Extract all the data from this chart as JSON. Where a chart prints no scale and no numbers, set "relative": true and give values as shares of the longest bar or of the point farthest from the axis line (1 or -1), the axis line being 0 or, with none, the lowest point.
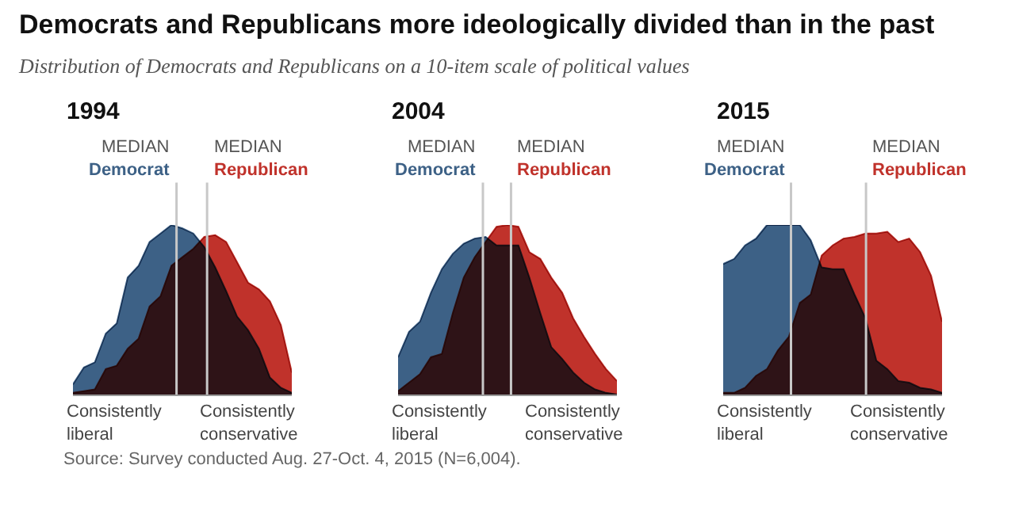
{
  "chart_data": [
    {
      "type": "other",
      "title": "Democrats and Republicans more ideologically divided than in the past",
      "subtitle": "Distribution of Democrats and Republicans on a 10-item scale of political values",
      "annotations": [
        "Source: Survey conducted Aug. 27-Oct. 4, 2015 (N=6,004)."
      ]
    },
    {
      "type": "area",
      "title": "1994",
      "relative": true,
      "categories": [
        null,
        null,
        null,
        null,
        null,
        null,
        null,
        null,
        null,
        null,
        null,
        null,
        null,
        null,
        null,
        null,
        null,
        null,
        null,
        null,
        null
      ],
      "annotations": [
        "MEDIAN",
        "MEDIAN",
        "Consistently\nliberal",
        "Consistently\nconservative"
      ],
      "series": [
        {
          "name": "Democrat",
          "color": "#3d6186",
          "values": [
            0.06,
            0.16,
            0.19,
            0.36,
            0.42,
            0.69,
            0.76,
            0.9,
            0.95,
            1.0,
            0.98,
            0.95,
            0.87,
            0.75,
            0.61,
            0.46,
            0.38,
            0.27,
            0.1,
            0.04,
            0.01
          ]
        },
        {
          "name": "Republican",
          "color": "#c0322b",
          "values": [
            0.01,
            0.02,
            0.03,
            0.15,
            0.17,
            0.27,
            0.33,
            0.52,
            0.58,
            0.76,
            0.81,
            0.86,
            0.93,
            0.94,
            0.9,
            0.78,
            0.66,
            0.62,
            0.55,
            0.41,
            0.13
          ]
        }
      ]
    },
    {
      "type": "area",
      "title": "2004",
      "relative": true,
      "categories": [
        null,
        null,
        null,
        null,
        null,
        null,
        null,
        null,
        null,
        null,
        null,
        null,
        null,
        null,
        null,
        null,
        null,
        null,
        null,
        null,
        null
      ],
      "annotations": [
        "MEDIAN",
        "MEDIAN",
        "Consistently\nliberal",
        "Consistently\nconservative"
      ],
      "series": [
        {
          "name": "Democrat",
          "color": "#3d6186",
          "values": [
            0.22,
            0.37,
            0.43,
            0.6,
            0.74,
            0.83,
            0.89,
            0.92,
            0.93,
            0.88,
            0.88,
            0.88,
            0.69,
            0.48,
            0.28,
            0.21,
            0.13,
            0.07,
            0.03,
            0.01,
            0.0
          ]
        },
        {
          "name": "Republican",
          "color": "#c0322b",
          "values": [
            0.02,
            0.07,
            0.12,
            0.22,
            0.24,
            0.48,
            0.69,
            0.81,
            0.9,
            0.99,
            1.0,
            0.99,
            0.84,
            0.8,
            0.69,
            0.6,
            0.45,
            0.34,
            0.24,
            0.15,
            0.08
          ]
        }
      ]
    },
    {
      "type": "area",
      "title": "2015",
      "relative": true,
      "categories": [
        null,
        null,
        null,
        null,
        null,
        null,
        null,
        null,
        null,
        null,
        null,
        null,
        null,
        null,
        null,
        null,
        null,
        null,
        null,
        null,
        null
      ],
      "annotations": [
        "MEDIAN",
        "MEDIAN",
        "Consistently\nliberal",
        "Consistently\nconservative"
      ],
      "series": [
        {
          "name": "Democrat",
          "color": "#3d6186",
          "values": [
            0.77,
            0.8,
            0.88,
            0.92,
            1.0,
            1.0,
            1.0,
            1.0,
            0.91,
            0.75,
            0.74,
            0.74,
            0.59,
            0.45,
            0.2,
            0.15,
            0.08,
            0.07,
            0.04,
            0.03,
            0.01
          ]
        },
        {
          "name": "Republican",
          "color": "#c0322b",
          "values": [
            0.01,
            0.01,
            0.04,
            0.11,
            0.15,
            0.26,
            0.34,
            0.54,
            0.59,
            0.82,
            0.88,
            0.92,
            0.93,
            0.95,
            0.95,
            0.96,
            0.9,
            0.92,
            0.84,
            0.7,
            0.43
          ]
        }
      ]
    }
  ]
}
